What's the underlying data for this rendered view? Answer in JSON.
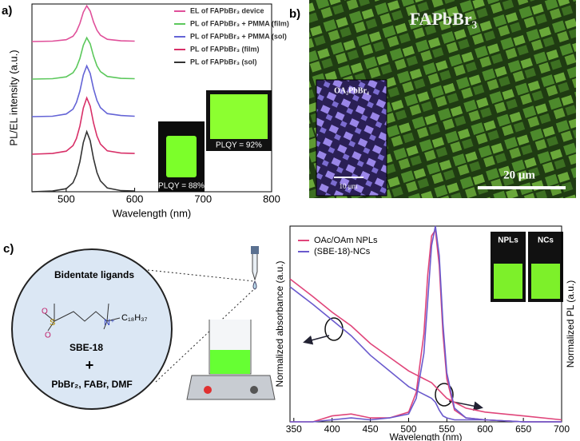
{
  "panels": {
    "a": "a)",
    "b": "b)",
    "c": "c)"
  },
  "chart_data": [
    {
      "type": "line",
      "xlabel": "Wavelength (nm)",
      "ylabel": "PL/EL intensity (a.u.)",
      "x": [
        450,
        480,
        500,
        510,
        515,
        520,
        525,
        530,
        535,
        540,
        545,
        550,
        560,
        580,
        600
      ],
      "xlim": [
        450,
        800
      ],
      "xticks": [
        500,
        600,
        700,
        800
      ],
      "ylim": [
        0,
        5
      ],
      "legend": "upper right",
      "series": [
        {
          "name": "EL of FAPbBr₃ device",
          "color": "#e0509a",
          "values": [
            4,
            4.01,
            4.05,
            4.14,
            4.27,
            4.48,
            4.78,
            4.95,
            4.81,
            4.52,
            4.3,
            4.17,
            4.06,
            4.02,
            4.01
          ]
        },
        {
          "name": "PL of FAPbBr₃ + PMMA (film)",
          "color": "#5cc85c",
          "values": [
            3,
            3.01,
            3.06,
            3.17,
            3.31,
            3.55,
            3.9,
            4.1,
            3.94,
            3.61,
            3.35,
            3.2,
            3.07,
            3.02,
            3.01
          ]
        },
        {
          "name": "PL of FAPbBr₃ + PMMA (sol)",
          "color": "#6464d6",
          "values": [
            2,
            2.01,
            2.07,
            2.2,
            2.38,
            2.68,
            3.11,
            3.35,
            3.15,
            2.74,
            2.43,
            2.24,
            2.08,
            2.03,
            2.01
          ]
        },
        {
          "name": "PL of FAPbBr₃ (film)",
          "color": "#d83068",
          "values": [
            1,
            1.02,
            1.08,
            1.23,
            1.42,
            1.75,
            2.23,
            2.5,
            2.28,
            1.83,
            1.48,
            1.27,
            1.09,
            1.03,
            1.02
          ]
        },
        {
          "name": "PL of FAPbBr₃ (sol)",
          "color": "#333333",
          "values": [
            0,
            0.02,
            0.08,
            0.24,
            0.45,
            0.8,
            1.31,
            1.6,
            1.36,
            0.88,
            0.51,
            0.29,
            0.1,
            0.03,
            0.02
          ]
        }
      ],
      "annotations": [
        "PLQY = 88%",
        "PLQY = 92%"
      ]
    },
    {
      "type": "line",
      "xlabel": "Wavelength (nm)",
      "ylabel": "Normalized absorbance (a.u.)",
      "y2label": "Normalized PL (a.u.)",
      "x": [
        345,
        375,
        400,
        425,
        450,
        475,
        500,
        510,
        520,
        525,
        530,
        535,
        540,
        545,
        550,
        560,
        575,
        600,
        650,
        700
      ],
      "xlim": [
        345,
        700
      ],
      "xticks": [
        350,
        400,
        450,
        500,
        550,
        600,
        650,
        700
      ],
      "ylim": [
        0,
        1
      ],
      "y2lim": [
        0,
        1
      ],
      "legend": "upper left",
      "series": [
        {
          "name": "OAc/OAm NPLs",
          "color": "#e0457a",
          "values": [
            0.73,
            0.64,
            0.56,
            0.49,
            0.4,
            0.33,
            0.26,
            0.24,
            0.22,
            0.21,
            0.2,
            0.18,
            0.16,
            0.14,
            0.12,
            0.1,
            0.07,
            0.05,
            0.03,
            0.01
          ]
        },
        {
          "name": "(SBE-18)-NCs",
          "color": "#6a5acd",
          "values": [
            0.69,
            0.6,
            0.52,
            0.44,
            0.34,
            0.26,
            0.18,
            0.16,
            0.14,
            0.13,
            0.12,
            0.1,
            0.06,
            0.03,
            0.02,
            0.01,
            0.01,
            0.01,
            0,
            0
          ]
        },
        {
          "color": "#e0457a",
          "axis": "y2",
          "values": [
            0,
            0,
            0.03,
            0.04,
            0.02,
            0.02,
            0.05,
            0.15,
            0.45,
            0.75,
            0.95,
            0.98,
            0.8,
            0.45,
            0.22,
            0.06,
            0.02,
            0.01,
            0,
            0
          ]
        },
        {
          "color": "#6a5acd",
          "axis": "y2",
          "values": [
            0,
            0,
            0.01,
            0.02,
            0.01,
            0.02,
            0.04,
            0.12,
            0.35,
            0.62,
            0.9,
            1.0,
            0.85,
            0.5,
            0.25,
            0.07,
            0.02,
            0.01,
            0,
            0
          ]
        }
      ],
      "annotations": [
        "NPLs",
        "NCs"
      ]
    }
  ],
  "image_b": {
    "title": "FAPbBr₃",
    "inset": "OA₂PbBr₄",
    "inset_scale": "10 μm",
    "scale": "20 μm"
  },
  "diagram_c": {
    "heading": "Bidentate ligands",
    "chain": "C₁₈H₃₇",
    "oxygen": "O",
    "sulfur": "S",
    "nitrogen": "N⁺",
    "name": "SBE-18",
    "plus": "+",
    "reagents": "PbBr₂, FABr,  DMF"
  }
}
